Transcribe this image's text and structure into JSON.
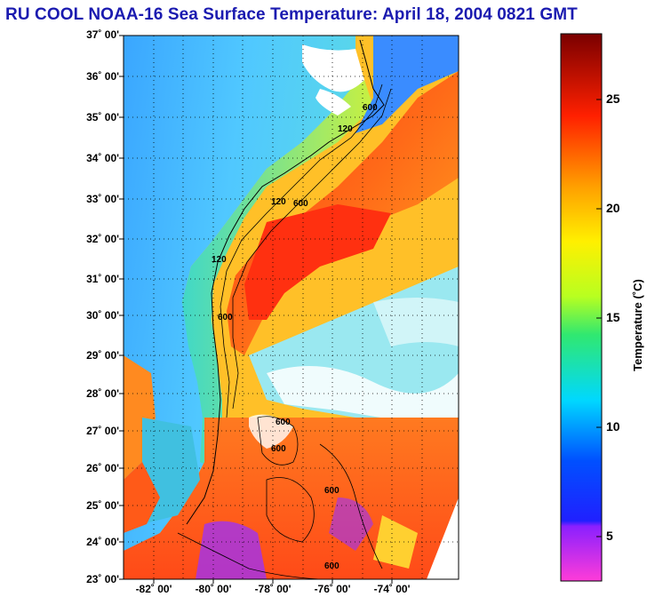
{
  "title": "RU COOL  NOAA-16  Sea Surface Temperature:  April 18, 2004 0821 GMT",
  "latitude_labels": [
    "37˚ 00'",
    "36˚ 00'",
    "35˚ 00'",
    "34˚ 00'",
    "33˚ 00'",
    "32˚ 00'",
    "31˚ 00'",
    "30˚ 00'",
    "29˚ 00'",
    "28˚ 00'",
    "27˚ 00'",
    "26˚ 00'",
    "25˚ 00'",
    "24˚ 00'",
    "23˚ 00'"
  ],
  "longitude_labels": [
    "-82˚ 00'",
    "-80˚ 00'",
    "-78˚ 00'",
    "-76˚ 00'",
    "-74˚ 00'"
  ],
  "isobath_labels": [
    "120",
    "600",
    "120",
    "600",
    "120",
    "600",
    "600",
    "600",
    "600",
    "600"
  ],
  "colorbar": {
    "label": "Temperature (˚C)",
    "ticks": [
      "25",
      "20",
      "15",
      "10",
      "5"
    ],
    "range": [
      3,
      28
    ]
  },
  "colors": {
    "title": "#1b1bb0",
    "land": "#000000",
    "cloud": "#ffffff"
  }
}
